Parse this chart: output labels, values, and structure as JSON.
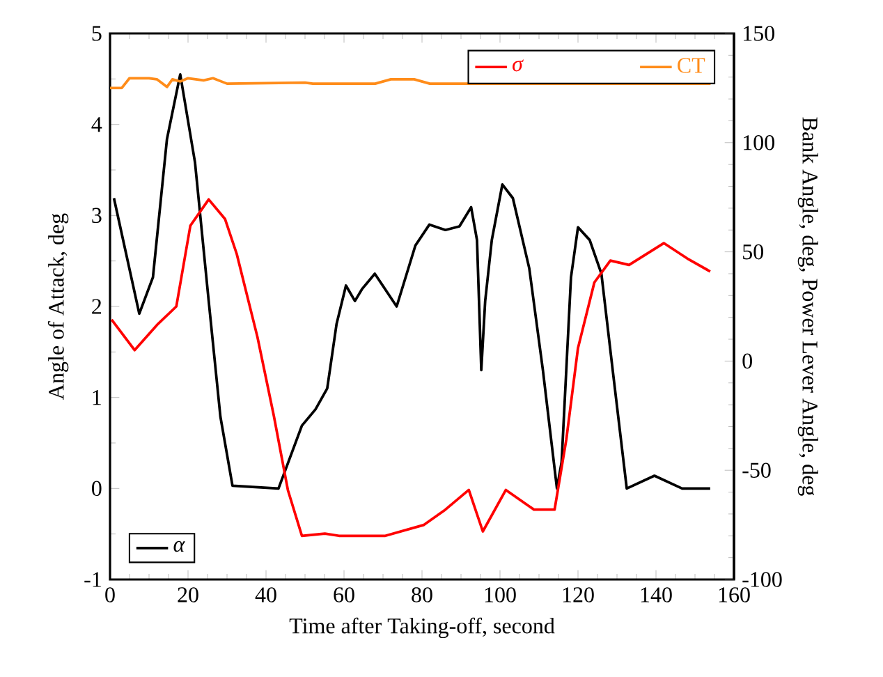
{
  "chart_data": {
    "type": "line",
    "xlabel": "Time after Taking-off, second",
    "ylabel": "Angle of Attack, deg",
    "y2label": "Bank Angle, deg, Power Lever Angle, deg",
    "xlim": [
      0,
      160
    ],
    "xticks": [
      0,
      20,
      40,
      60,
      80,
      100,
      120,
      140,
      160
    ],
    "ylim": [
      -1,
      5
    ],
    "yticks": [
      -1,
      0,
      1,
      2,
      3,
      4,
      5
    ],
    "y2lim": [
      -100,
      150
    ],
    "y2ticks": [
      -100,
      -50,
      0,
      50,
      100,
      150
    ],
    "legend": "top right",
    "series": [
      {
        "name": "*α*",
        "color": "#000000",
        "x": [
          1,
          7.5,
          11,
          14.6,
          18,
          21.8,
          25.3,
          28.3,
          31.4,
          43.2,
          49.2,
          52.7,
          55.7,
          58.1,
          60.5,
          62.8,
          64.6,
          67.9,
          73.5,
          78.3,
          81.9,
          86,
          89.6,
          92.6,
          94.1,
          95.2,
          96.2,
          97.9,
          100.6,
          103.3,
          107.5,
          111,
          114.6,
          115.8,
          118.2,
          120,
          123,
          126,
          128.9,
          132.5,
          139.6,
          146.7,
          153.9
        ],
        "values": [
          3.19,
          1.92,
          2.32,
          3.84,
          4.55,
          3.58,
          2.06,
          0.79,
          0.03,
          0,
          0.69,
          0.87,
          1.1,
          1.81,
          2.23,
          2.06,
          2.19,
          2.36,
          2.0,
          2.67,
          2.9,
          2.84,
          2.88,
          3.09,
          2.73,
          1.3,
          2.06,
          2.73,
          3.34,
          3.19,
          2.42,
          1.3,
          0,
          0.29,
          2.32,
          2.87,
          2.73,
          2.36,
          1.3,
          0,
          0.14,
          0,
          0
        ]
      },
      {
        "name": "*σ*",
        "color": "#ff0000",
        "axis": "y2",
        "x": [
          0.4,
          6.3,
          12.3,
          17,
          20.6,
          25.3,
          29.5,
          32.5,
          37.8,
          42,
          45.6,
          49.2,
          55.1,
          58.7,
          70.6,
          80.5,
          86,
          92,
          95.6,
          101.5,
          108.7,
          114,
          117,
          120,
          124.2,
          128.3,
          133.1,
          142,
          148,
          153.9
        ],
        "values": [
          19,
          5,
          17,
          25,
          62,
          74,
          65,
          49,
          11,
          -25,
          -59,
          -80,
          -79,
          -80,
          -80,
          -75,
          -68,
          -59,
          -78,
          -59,
          -68,
          -68,
          -36,
          6,
          36,
          46,
          44,
          54,
          47,
          41
        ]
      },
      {
        "name": "CT",
        "color": "#ff8c1a",
        "axis": "y2",
        "x": [
          0,
          3,
          5,
          10,
          12,
          14.6,
          16,
          18,
          20,
          24,
          26.4,
          30,
          50,
          52,
          68,
          72,
          78,
          82,
          154
        ],
        "values": [
          125,
          125,
          129.5,
          129.5,
          129,
          125.5,
          129,
          128,
          129.5,
          128.5,
          129.5,
          127,
          127.5,
          127,
          127,
          129,
          129,
          127,
          127
        ]
      }
    ]
  }
}
